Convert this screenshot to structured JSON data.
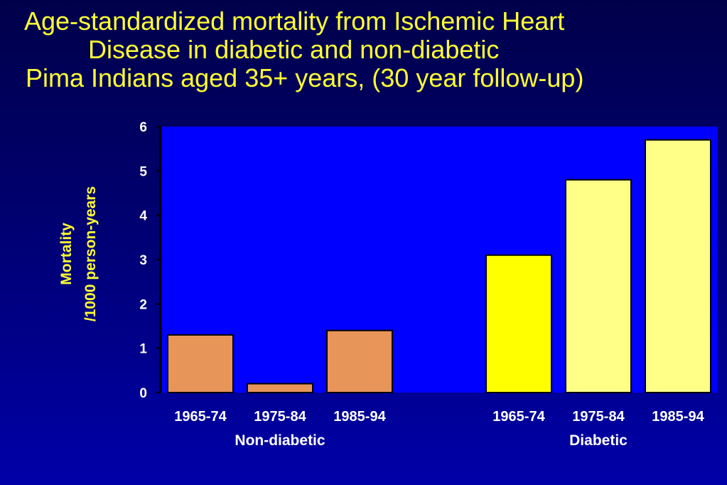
{
  "title": {
    "line1": "Age-standardized mortality from Ischemic Heart",
    "line2": "Disease in diabetic and non-diabetic",
    "line3": "Pima Indians aged 35+ years, (30 year follow-up)"
  },
  "colors": {
    "plot_bg": "#0000ff",
    "non_diabetic": "#e8955a",
    "diabetic_1": "#ffff00",
    "diabetic_2": "#ffff88",
    "diabetic_3": "#ffff88",
    "title": "#ffff33"
  },
  "chart_data": {
    "type": "bar",
    "title": "Age-standardized mortality from Ischemic Heart Disease in diabetic and non-diabetic Pima Indians aged 35+ years, (30 year follow-up)",
    "ylabel_line1": "Mortality",
    "ylabel_line2": "/1000 person-years",
    "ylim": [
      0,
      6
    ],
    "yticks": [
      "0",
      "1",
      "2",
      "3",
      "4",
      "5",
      "6"
    ],
    "groups": [
      {
        "name": "Non-diabetic",
        "categories": [
          "1965-74",
          "1975-84",
          "1985-94"
        ],
        "values": [
          1.3,
          0.2,
          1.4
        ]
      },
      {
        "name": "Diabetic",
        "categories": [
          "1965-74",
          "1975-84",
          "1985-94"
        ],
        "values": [
          3.1,
          4.8,
          5.7
        ]
      }
    ],
    "grid": false,
    "legend": "none"
  }
}
